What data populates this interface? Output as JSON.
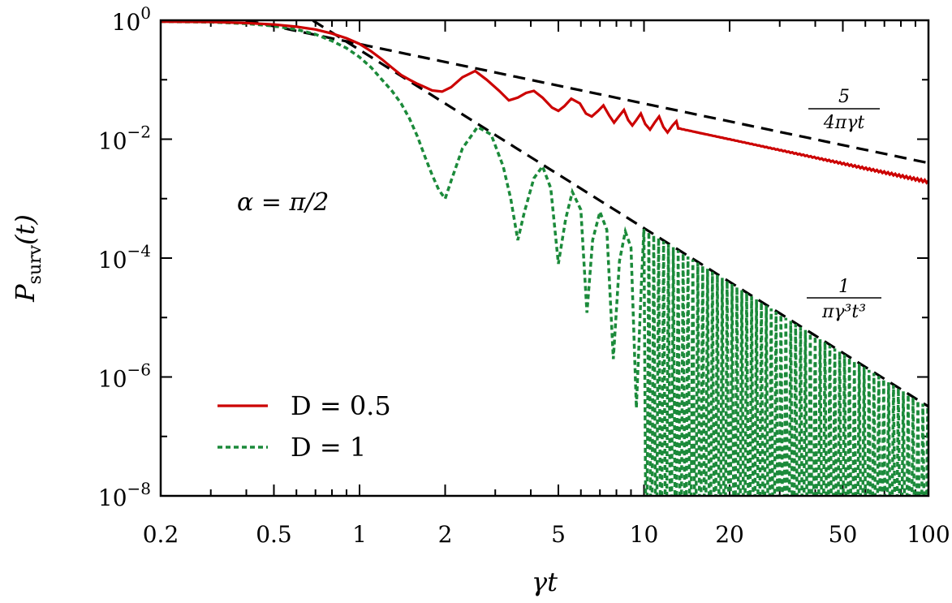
{
  "chart_data": {
    "type": "line",
    "xlabel": "γt",
    "ylabel": "P",
    "ylabel_sub": "surv",
    "ylabel_arg": "(t)",
    "xscale": "log",
    "yscale": "log",
    "xlim": [
      0.2,
      100
    ],
    "ylim": [
      1e-08,
      1
    ],
    "x_ticks": [
      {
        "value": 0.2,
        "label": "0.2"
      },
      {
        "value": 0.5,
        "label": "0.5"
      },
      {
        "value": 1,
        "label": "1"
      },
      {
        "value": 2,
        "label": "2"
      },
      {
        "value": 5,
        "label": "5"
      },
      {
        "value": 10,
        "label": "10"
      },
      {
        "value": 20,
        "label": "20"
      },
      {
        "value": 50,
        "label": "50"
      },
      {
        "value": 100,
        "label": "100"
      }
    ],
    "y_ticks": [
      {
        "value": 1,
        "base": "10",
        "exp": "0"
      },
      {
        "value": 0.01,
        "base": "10",
        "exp": "−2"
      },
      {
        "value": 0.0001,
        "base": "10",
        "exp": "−4"
      },
      {
        "value": 1e-06,
        "base": "10",
        "exp": "−6"
      },
      {
        "value": 1e-08,
        "base": "10",
        "exp": "−8"
      }
    ],
    "annotation": "α = π/2",
    "series": [
      {
        "name": "D = 0.5",
        "color": "#cc0000",
        "style": "solid",
        "x": [
          0.2,
          0.3,
          0.4,
          0.5,
          0.6,
          0.7,
          0.8,
          0.9,
          1.0,
          1.1,
          1.2,
          1.3,
          1.4,
          1.5,
          1.6,
          1.7,
          1.8,
          1.95,
          2.1,
          2.3,
          2.55,
          2.8,
          3.1,
          3.35,
          3.6,
          3.85,
          4.1,
          4.4,
          4.75,
          5.0,
          5.25,
          5.55,
          5.95,
          6.25,
          6.55,
          6.9,
          7.2,
          7.55,
          7.85,
          8.15,
          8.5,
          8.8,
          9.1,
          9.4,
          9.75,
          10.1,
          10.5,
          10.9,
          11.3,
          11.7,
          12.1,
          12.6,
          13.0
        ],
        "y": [
          0.95,
          0.94,
          0.9,
          0.85,
          0.78,
          0.7,
          0.6,
          0.5,
          0.4,
          0.3,
          0.22,
          0.16,
          0.12,
          0.1,
          0.085,
          0.075,
          0.066,
          0.063,
          0.075,
          0.11,
          0.14,
          0.1,
          0.065,
          0.045,
          0.05,
          0.06,
          0.065,
          0.05,
          0.034,
          0.03,
          0.036,
          0.048,
          0.04,
          0.027,
          0.024,
          0.03,
          0.037,
          0.025,
          0.019,
          0.024,
          0.031,
          0.021,
          0.017,
          0.021,
          0.027,
          0.018,
          0.0145,
          0.019,
          0.024,
          0.016,
          0.013,
          0.017,
          0.02
        ],
        "oscillation_from": 13,
        "oscillation_envelope": {
          "upper_coef": 0.2,
          "lower_coef": 0.23,
          "upper_power": 1.0,
          "lower_power": 1.05
        }
      },
      {
        "name": "D = 1",
        "color": "#1b8a3a",
        "style": "dashed",
        "x": [
          0.2,
          0.3,
          0.4,
          0.5,
          0.6,
          0.7,
          0.8,
          0.9,
          1.0,
          1.1,
          1.2,
          1.3,
          1.4,
          1.5,
          1.6,
          1.7,
          1.8,
          1.9,
          2.0,
          2.1,
          2.3,
          2.6,
          2.9,
          3.2,
          3.4,
          3.6,
          3.8,
          4.1,
          4.4,
          4.7,
          5.0,
          5.3,
          5.6,
          6.0,
          6.3,
          6.6,
          7.0,
          7.4,
          7.8,
          8.2,
          8.6,
          9.0,
          9.4,
          9.8
        ],
        "y": [
          0.95,
          0.93,
          0.88,
          0.8,
          0.7,
          0.58,
          0.45,
          0.34,
          0.24,
          0.16,
          0.1,
          0.065,
          0.04,
          0.022,
          0.011,
          0.005,
          0.0025,
          0.0014,
          0.001,
          0.002,
          0.007,
          0.016,
          0.012,
          0.0035,
          0.001,
          0.0002,
          0.0006,
          0.0022,
          0.0035,
          0.0015,
          8e-05,
          0.00045,
          0.0013,
          0.00065,
          1.2e-05,
          0.0002,
          0.0006,
          0.0003,
          2e-06,
          9e-05,
          0.00028,
          0.00015,
          3e-07,
          4e-05
        ],
        "oscillation_from": 9.8,
        "oscillation_envelope": {
          "upper_coef": 0.31,
          "lower_coef": 0.0,
          "upper_power": 3.0
        }
      },
      {
        "name": "",
        "formula": "5/(4πγt)",
        "formula_num": "5",
        "formula_den": "4πγt",
        "color": "#000000",
        "style": "dashed",
        "asymptote_coef": 0.3979,
        "asymptote_power": 1
      },
      {
        "name": "",
        "formula": "1/(πγ³t³)",
        "formula_num": "1",
        "formula_den": "πγ³t³",
        "color": "#000000",
        "style": "dashed",
        "asymptote_coef": 0.3183,
        "asymptote_power": 3
      }
    ],
    "legend": [
      {
        "label": "D = 0.5",
        "color": "#cc0000",
        "style": "solid"
      },
      {
        "label": "D = 1",
        "color": "#1b8a3a",
        "style": "dashed"
      }
    ],
    "legend_position": "bottom-left",
    "grid": false
  }
}
